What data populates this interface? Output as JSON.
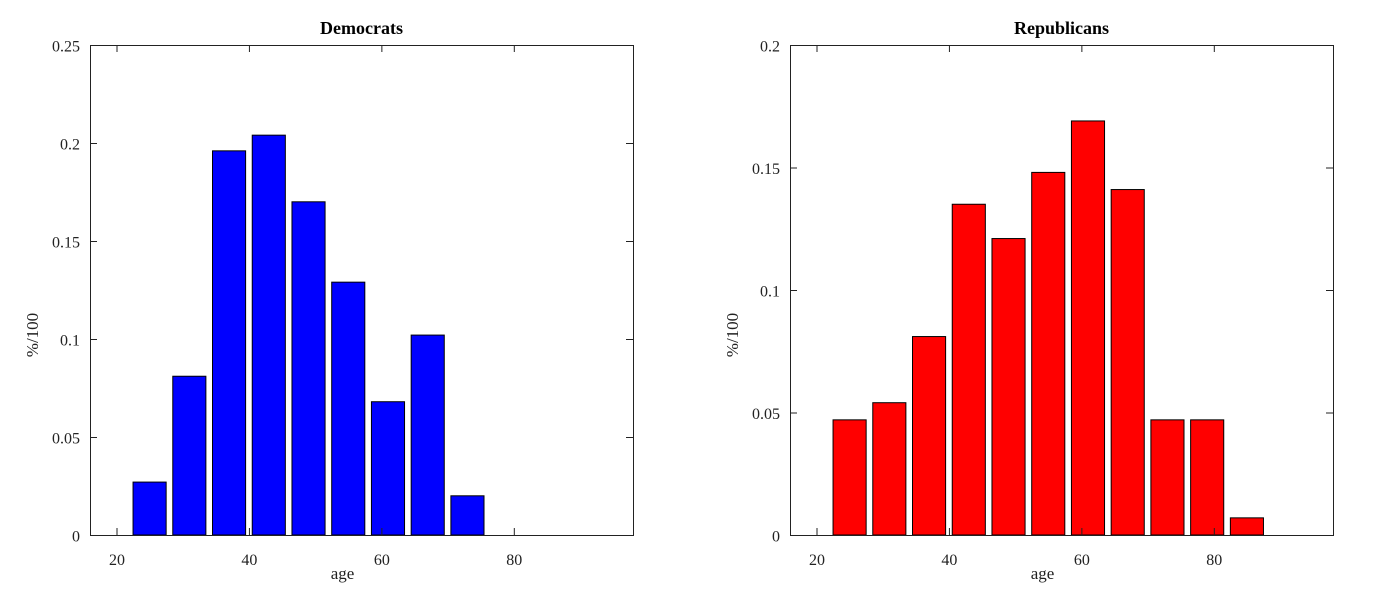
{
  "chart_data": [
    {
      "type": "bar",
      "title": "Democrats",
      "xlabel": "age",
      "ylabel": "%/100",
      "color": "#0000ff",
      "xlim": [
        16,
        98
      ],
      "ylim": [
        0,
        0.25
      ],
      "xticks": [
        20,
        40,
        60,
        80
      ],
      "yticks": [
        0,
        0.05,
        0.1,
        0.15,
        0.2,
        0.25
      ],
      "ytick_labels": [
        "0",
        "0.05",
        "0.1",
        "0.15",
        "0.2",
        "0.25"
      ],
      "bar_width": 5,
      "x": [
        25,
        31,
        37,
        43,
        49,
        55,
        61,
        67,
        73
      ],
      "values": [
        0.027,
        0.081,
        0.196,
        0.204,
        0.17,
        0.129,
        0.068,
        0.102,
        0.02
      ],
      "grid": false
    },
    {
      "type": "bar",
      "title": "Republicans",
      "xlabel": "age",
      "ylabel": "%/100",
      "color": "#ff0000",
      "xlim": [
        16,
        98
      ],
      "ylim": [
        0,
        0.2
      ],
      "xticks": [
        20,
        40,
        60,
        80
      ],
      "yticks": [
        0,
        0.05,
        0.1,
        0.15,
        0.2
      ],
      "ytick_labels": [
        "0",
        "0.05",
        "0.1",
        "0.15",
        "0.2"
      ],
      "bar_width": 5,
      "x": [
        25,
        31,
        37,
        43,
        49,
        55,
        61,
        67,
        73,
        79,
        85
      ],
      "values": [
        0.047,
        0.054,
        0.081,
        0.135,
        0.121,
        0.148,
        0.169,
        0.141,
        0.047,
        0.047,
        0.007
      ],
      "grid": false
    }
  ]
}
